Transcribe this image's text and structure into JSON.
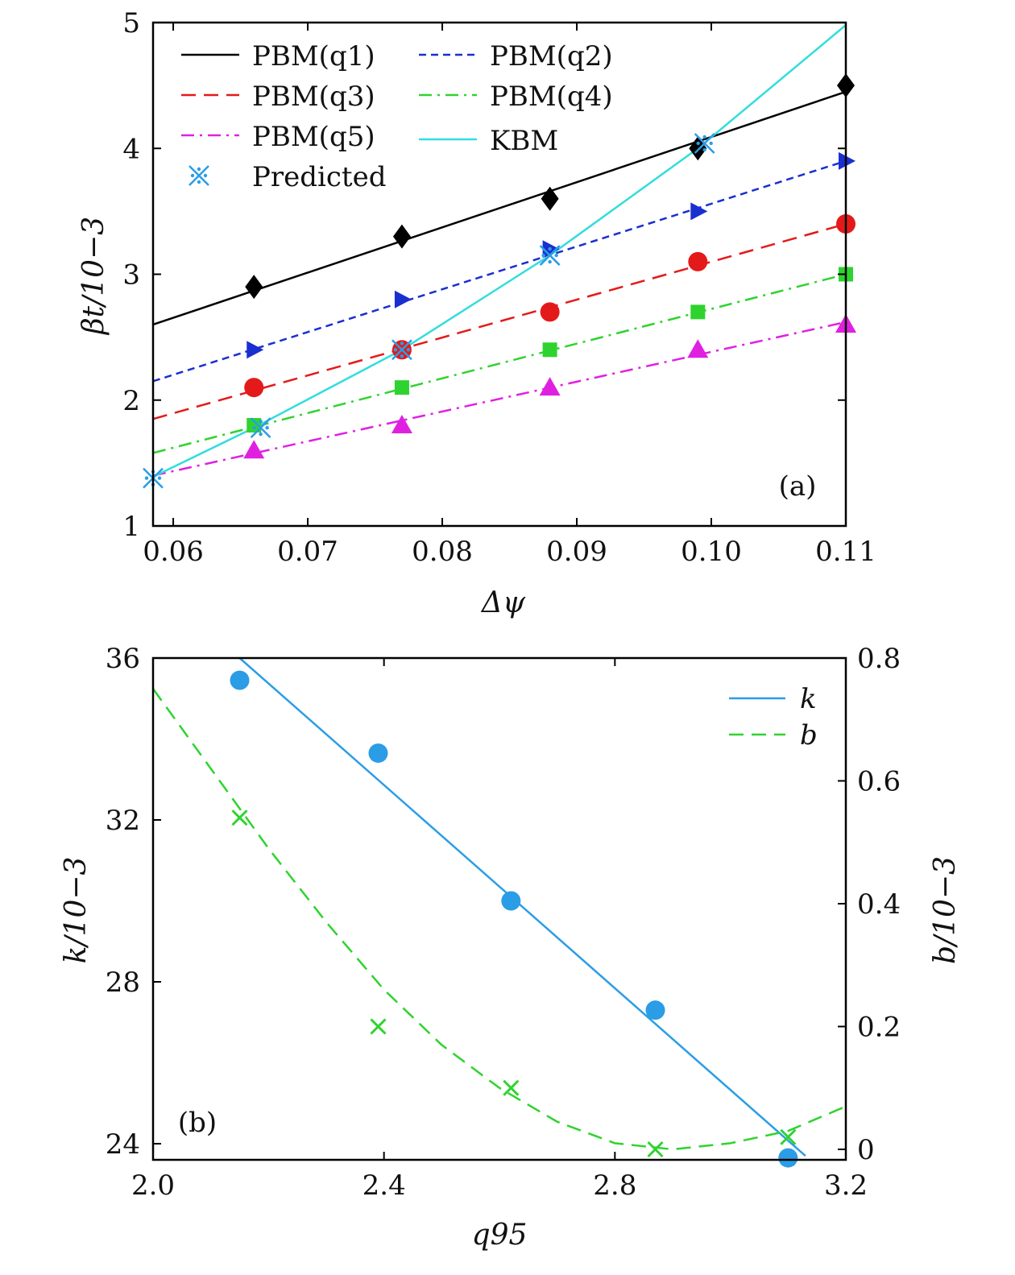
{
  "chart_data": [
    {
      "panel": "(a)",
      "type": "line",
      "xlabel": "Δψ",
      "ylabel": "βt/10−3",
      "xlim": [
        0.0585,
        0.11
      ],
      "ylim": [
        1,
        5
      ],
      "x_ticks": [
        "0.06",
        "0.07",
        "0.08",
        "0.09",
        "0.10",
        "0.11"
      ],
      "y_ticks": [
        "1",
        "2",
        "3",
        "4",
        "5"
      ],
      "legend": "top-left",
      "series": [
        {
          "name": "PBM(q1)",
          "color": "#000000",
          "marker": "diamond",
          "line": "solid",
          "line_x": [
            0.0585,
            0.11
          ],
          "line_y": [
            2.6,
            4.45
          ],
          "points_x": [
            0.066,
            0.077,
            0.088,
            0.099,
            0.11
          ],
          "points_y": [
            2.9,
            3.3,
            3.6,
            4.0,
            4.5
          ]
        },
        {
          "name": "PBM(q2)",
          "color": "#1a2fd0",
          "marker": "triangle-right",
          "line": "dashed-short",
          "line_x": [
            0.0585,
            0.11
          ],
          "line_y": [
            2.15,
            3.9
          ],
          "points_x": [
            0.066,
            0.077,
            0.088,
            0.099,
            0.11
          ],
          "points_y": [
            2.4,
            2.8,
            3.2,
            3.5,
            3.9
          ]
        },
        {
          "name": "PBM(q3)",
          "color": "#e41a1a",
          "marker": "circle",
          "line": "dashed",
          "line_x": [
            0.0585,
            0.11
          ],
          "line_y": [
            1.85,
            3.4
          ],
          "points_x": [
            0.066,
            0.077,
            0.088,
            0.099,
            0.11
          ],
          "points_y": [
            2.1,
            2.4,
            2.7,
            3.1,
            3.4
          ]
        },
        {
          "name": "PBM(q4)",
          "color": "#2fd32f",
          "marker": "square",
          "line": "dashdot",
          "line_x": [
            0.0585,
            0.11
          ],
          "line_y": [
            1.58,
            3.0
          ],
          "points_x": [
            0.066,
            0.077,
            0.088,
            0.099,
            0.11
          ],
          "points_y": [
            1.8,
            2.1,
            2.4,
            2.7,
            3.0
          ]
        },
        {
          "name": "PBM(q5)",
          "color": "#e020e0",
          "marker": "triangle-up",
          "line": "dashdot",
          "line_x": [
            0.0585,
            0.11
          ],
          "line_y": [
            1.4,
            2.62
          ],
          "points_x": [
            0.066,
            0.077,
            0.088,
            0.099,
            0.11
          ],
          "points_y": [
            1.6,
            1.8,
            2.1,
            2.4,
            2.6
          ]
        },
        {
          "name": "KBM",
          "color": "#33dddd",
          "marker": "none",
          "line": "solid",
          "line_x": [
            0.0585,
            0.066,
            0.077,
            0.088,
            0.099,
            0.11
          ],
          "line_y": [
            1.39,
            1.78,
            2.4,
            3.15,
            4.0,
            4.98
          ]
        },
        {
          "name": "Predicted",
          "color": "#2a9de6",
          "marker": "star-cross",
          "line": "none",
          "points_x": [
            0.0585,
            0.0665,
            0.077,
            0.088,
            0.0995
          ],
          "points_y": [
            1.38,
            1.78,
            2.4,
            3.15,
            4.04
          ]
        }
      ],
      "annotation": "(a)"
    },
    {
      "panel": "(b)",
      "type": "line",
      "xlabel": "q95",
      "ylabel_left": "k/10−3",
      "ylabel_right": "b/10−3",
      "xlim": [
        2.0,
        3.2
      ],
      "ylim_left": [
        23.7,
        36
      ],
      "ylim_right": [
        -0.02,
        0.8
      ],
      "x_ticks": [
        "2.0",
        "2.4",
        "2.8",
        "3.2"
      ],
      "y_ticks_left": [
        "24",
        "28",
        "32",
        "36"
      ],
      "y_ticks_right": [
        "0",
        "0.2",
        "0.4",
        "0.6",
        "0.8"
      ],
      "legend": "top-right",
      "series": [
        {
          "name": "k",
          "axis": "left",
          "color": "#2a9de6",
          "marker": "circle",
          "line": "solid",
          "line_x": [
            2.15,
            3.13
          ],
          "line_y": [
            36.0,
            23.7
          ],
          "points_x": [
            2.15,
            2.39,
            2.62,
            2.87,
            3.1
          ],
          "points_y": [
            35.45,
            33.65,
            30.0,
            27.3,
            23.65
          ]
        },
        {
          "name": "b",
          "axis": "right",
          "color": "#2fd32f",
          "marker": "x",
          "line": "dashed",
          "line_x": [
            2.0,
            2.1,
            2.2,
            2.3,
            2.4,
            2.5,
            2.6,
            2.7,
            2.8,
            2.9,
            3.0,
            3.1,
            3.2
          ],
          "line_y": [
            0.75,
            0.62,
            0.49,
            0.37,
            0.26,
            0.17,
            0.1,
            0.045,
            0.01,
            0.0,
            0.01,
            0.03,
            0.07
          ],
          "points_x": [
            2.15,
            2.39,
            2.62,
            2.87,
            3.1
          ],
          "points_y": [
            0.54,
            0.2,
            0.1,
            0.0,
            0.02
          ]
        }
      ],
      "annotation": "(b)"
    }
  ]
}
